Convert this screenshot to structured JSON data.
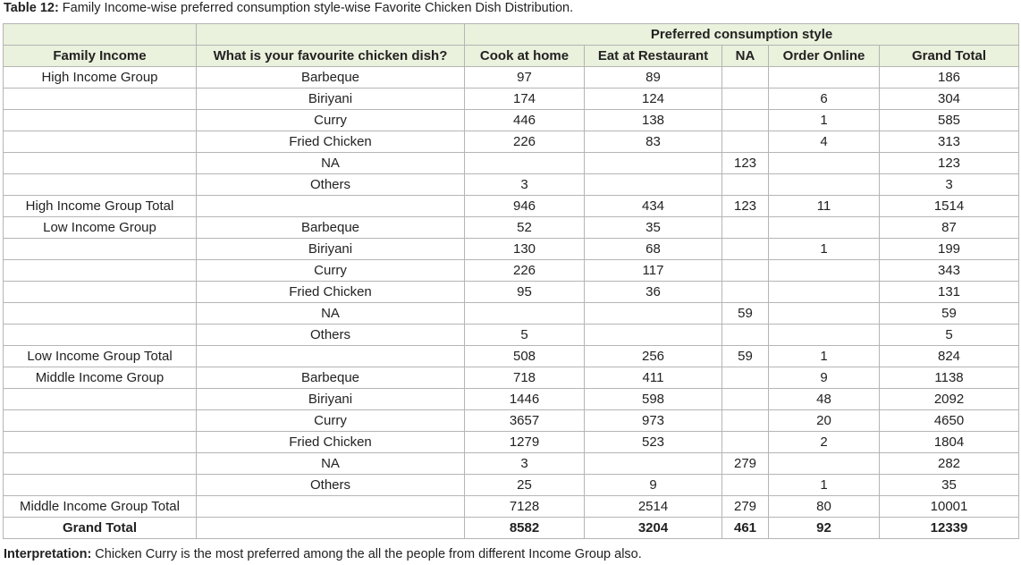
{
  "caption": {
    "label": "Table 12:",
    "text": " Family Income-wise preferred consumption style-wise Favorite Chicken Dish Distribution."
  },
  "table": {
    "group_header": "Preferred consumption style",
    "columns": [
      "Family Income",
      "What is your favourite chicken dish?",
      "Cook at home",
      "Eat at Restaurant",
      "NA",
      "Order Online",
      "Grand Total"
    ],
    "rows": [
      {
        "income": "High Income Group",
        "dish": "Barbeque",
        "cook": "97",
        "eat": "89",
        "na": "",
        "order": "",
        "total": "186"
      },
      {
        "income": "",
        "dish": "Biriyani",
        "cook": "174",
        "eat": "124",
        "na": "",
        "order": "6",
        "total": "304"
      },
      {
        "income": "",
        "dish": "Curry",
        "cook": "446",
        "eat": "138",
        "na": "",
        "order": "1",
        "total": "585"
      },
      {
        "income": "",
        "dish": "Fried Chicken",
        "cook": "226",
        "eat": "83",
        "na": "",
        "order": "4",
        "total": "313"
      },
      {
        "income": "",
        "dish": "NA",
        "cook": "",
        "eat": "",
        "na": "123",
        "order": "",
        "total": "123"
      },
      {
        "income": "",
        "dish": "Others",
        "cook": "3",
        "eat": "",
        "na": "",
        "order": "",
        "total": "3"
      },
      {
        "income": "High Income Group Total",
        "dish": "",
        "cook": "946",
        "eat": "434",
        "na": "123",
        "order": "11",
        "total": "1514"
      },
      {
        "income": "Low Income Group",
        "dish": "Barbeque",
        "cook": "52",
        "eat": "35",
        "na": "",
        "order": "",
        "total": "87"
      },
      {
        "income": "",
        "dish": "Biriyani",
        "cook": "130",
        "eat": "68",
        "na": "",
        "order": "1",
        "total": "199"
      },
      {
        "income": "",
        "dish": "Curry",
        "cook": "226",
        "eat": "117",
        "na": "",
        "order": "",
        "total": "343"
      },
      {
        "income": "",
        "dish": "Fried Chicken",
        "cook": "95",
        "eat": "36",
        "na": "",
        "order": "",
        "total": "131"
      },
      {
        "income": "",
        "dish": "NA",
        "cook": "",
        "eat": "",
        "na": "59",
        "order": "",
        "total": "59"
      },
      {
        "income": "",
        "dish": "Others",
        "cook": "5",
        "eat": "",
        "na": "",
        "order": "",
        "total": "5"
      },
      {
        "income": "Low Income Group Total",
        "dish": "",
        "cook": "508",
        "eat": "256",
        "na": "59",
        "order": "1",
        "total": "824"
      },
      {
        "income": "Middle Income Group",
        "dish": "Barbeque",
        "cook": "718",
        "eat": "411",
        "na": "",
        "order": "9",
        "total": "1138"
      },
      {
        "income": "",
        "dish": "Biriyani",
        "cook": "1446",
        "eat": "598",
        "na": "",
        "order": "48",
        "total": "2092"
      },
      {
        "income": "",
        "dish": "Curry",
        "cook": "3657",
        "eat": "973",
        "na": "",
        "order": "20",
        "total": "4650"
      },
      {
        "income": "",
        "dish": "Fried Chicken",
        "cook": "1279",
        "eat": "523",
        "na": "",
        "order": "2",
        "total": "1804"
      },
      {
        "income": "",
        "dish": "NA",
        "cook": "3",
        "eat": "",
        "na": "279",
        "order": "",
        "total": "282"
      },
      {
        "income": "",
        "dish": "Others",
        "cook": "25",
        "eat": "9",
        "na": "",
        "order": "1",
        "total": "35"
      },
      {
        "income": "Middle Income Group Total",
        "dish": "",
        "cook": "7128",
        "eat": "2514",
        "na": "279",
        "order": "80",
        "total": "10001"
      },
      {
        "income": "Grand Total",
        "dish": "",
        "cook": "8582",
        "eat": "3204",
        "na": "461",
        "order": "92",
        "total": "12339"
      }
    ]
  },
  "interpretation": {
    "label": "Interpretation:",
    "text": " Chicken Curry is the most preferred among the all the people from different Income Group also."
  }
}
